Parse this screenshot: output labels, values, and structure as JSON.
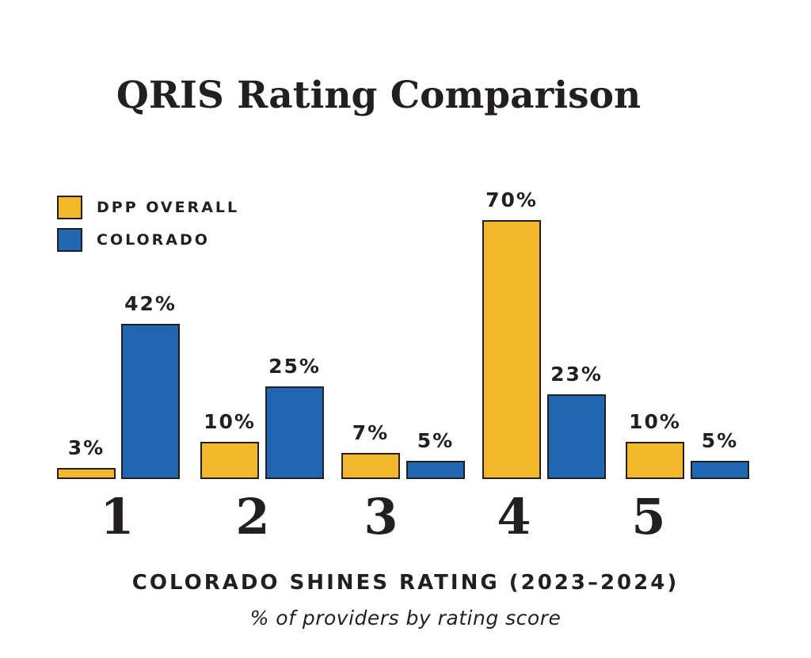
{
  "chart_data": {
    "type": "bar",
    "title": "QRIS Rating Comparison",
    "categories": [
      "1",
      "2",
      "3",
      "4",
      "5"
    ],
    "series": [
      {
        "name": "DPP OVERALL",
        "color": "#F2B72B",
        "values": [
          3,
          10,
          7,
          70,
          10
        ],
        "labels": [
          "3%",
          "10%",
          "7%",
          "70%",
          "10%"
        ]
      },
      {
        "name": "COLORADO",
        "color": "#2166B0",
        "values": [
          42,
          25,
          5,
          23,
          5
        ],
        "labels": [
          "42%",
          "25%",
          "5%",
          "23%",
          "5%"
        ]
      }
    ],
    "xlabel": "COLORADO SHINES RATING (2023–2024)",
    "subtitle": "% of providers by rating score",
    "ylim": [
      0,
      75
    ],
    "grid": false,
    "legend_position": "top-left",
    "value_labels_shown": true
  },
  "colors": {
    "background": "#FFFFFF",
    "text": "#231F20",
    "bar_border": "#231F20",
    "dpp_yellow": "#F2B72B",
    "colorado_blue": "#2166B0"
  }
}
